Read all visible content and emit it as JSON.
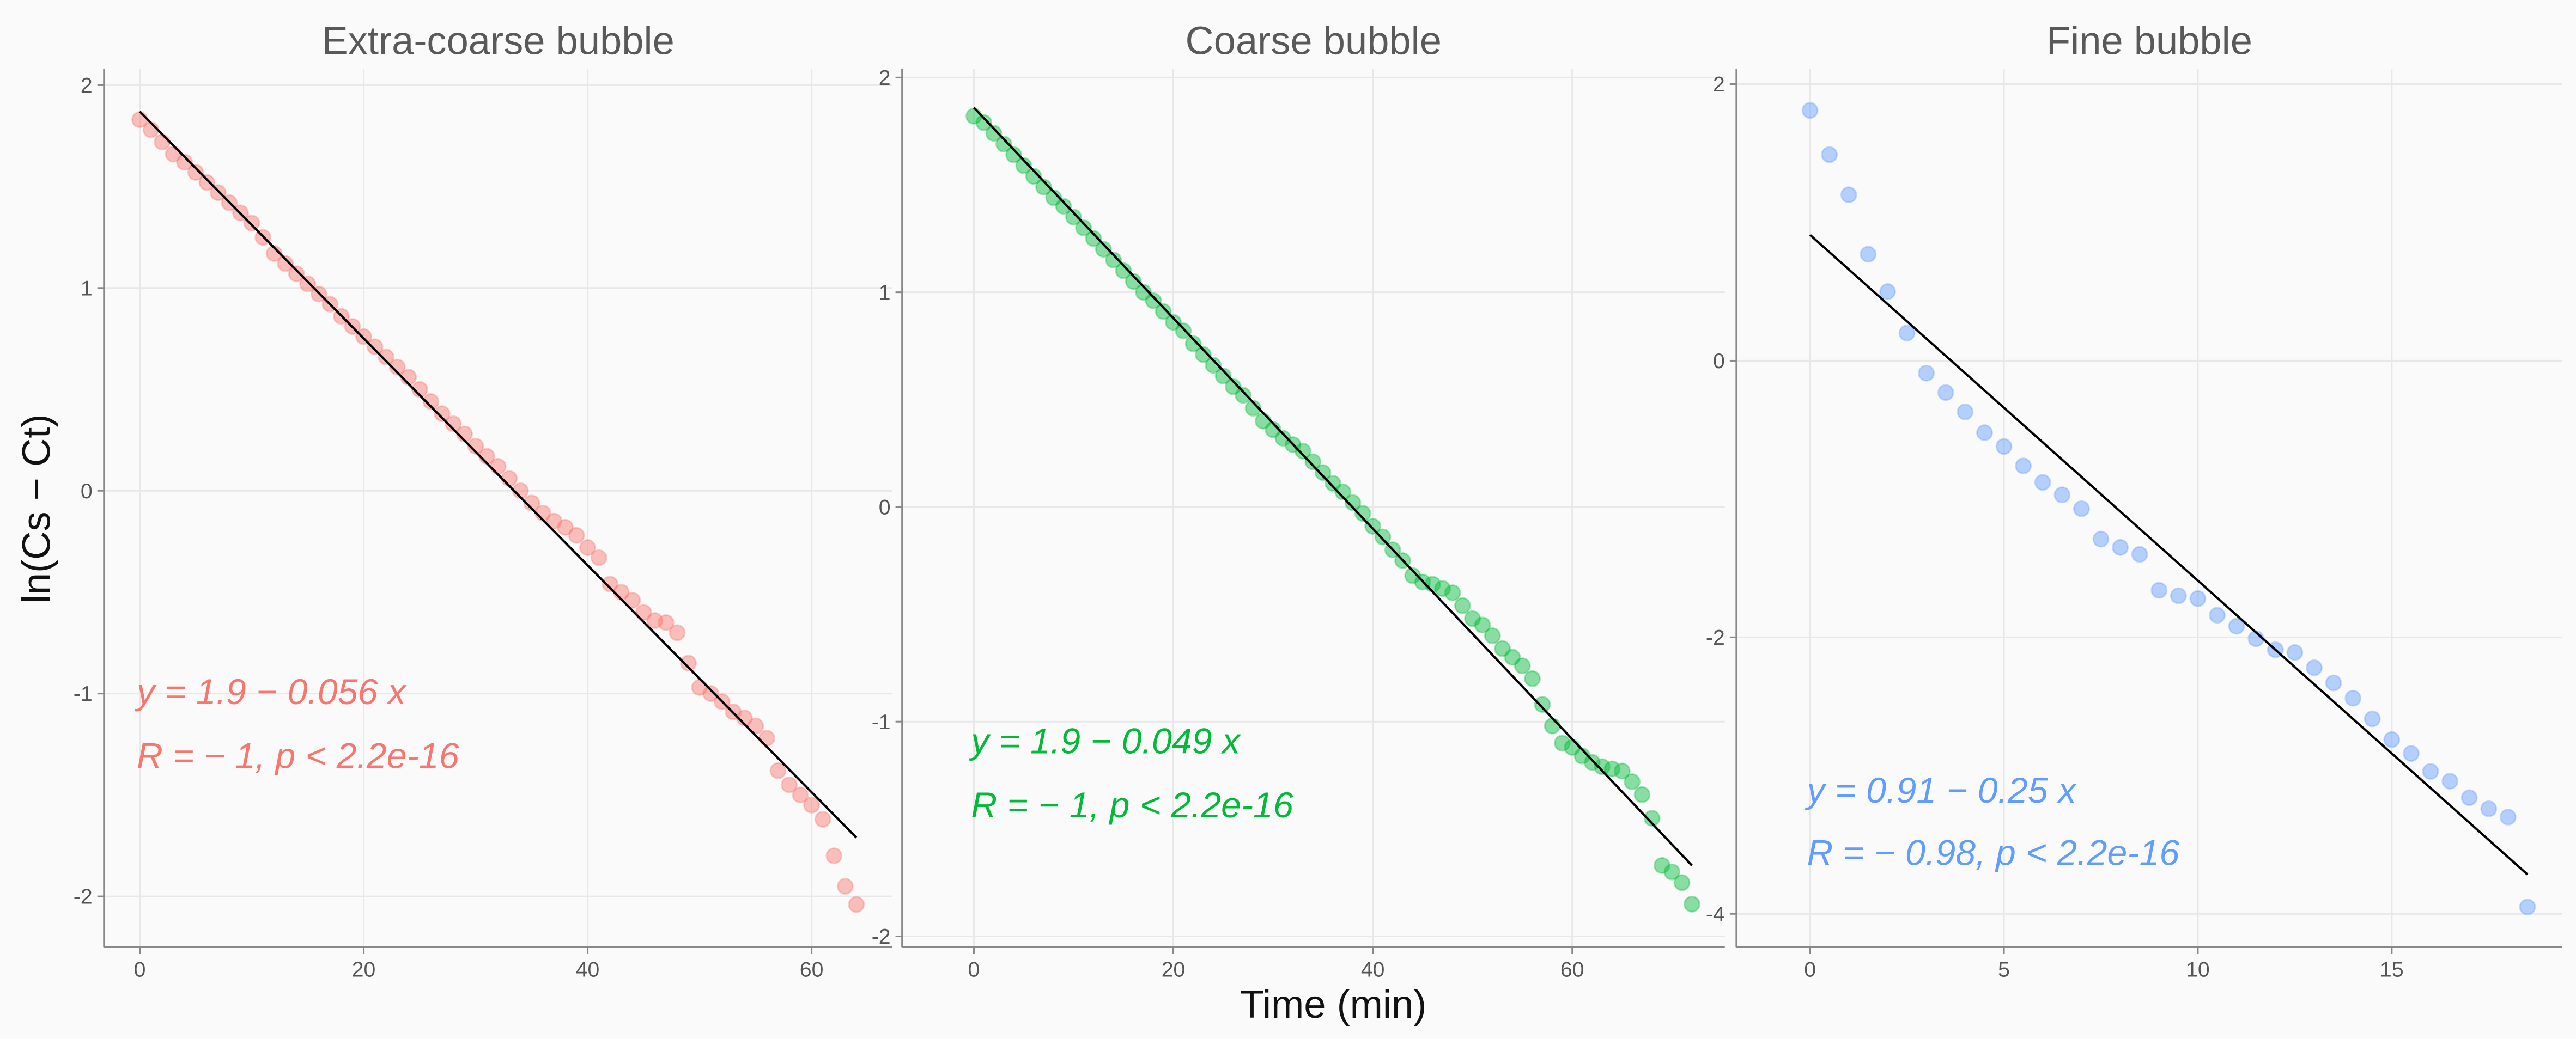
{
  "chart_data": [
    {
      "type": "scatter",
      "title": "Extra-coarse bubble",
      "y_label": "ln(Cs − Ct)",
      "color": "#F8766D",
      "x": [
        0,
        1,
        2,
        3,
        4,
        5,
        6,
        7,
        8,
        9,
        10,
        11,
        12,
        13,
        14,
        15,
        16,
        17,
        18,
        19,
        20,
        21,
        22,
        23,
        24,
        25,
        26,
        27,
        28,
        29,
        30,
        31,
        32,
        33,
        34,
        35,
        36,
        37,
        38,
        39,
        40,
        41,
        42,
        43,
        44,
        45,
        46,
        47,
        48,
        49,
        50,
        51,
        52,
        53,
        54,
        55,
        56,
        57,
        58,
        59,
        60,
        61,
        62,
        63,
        64
      ],
      "values": [
        1.83,
        1.78,
        1.72,
        1.66,
        1.62,
        1.57,
        1.52,
        1.47,
        1.42,
        1.37,
        1.32,
        1.25,
        1.17,
        1.12,
        1.07,
        1.02,
        0.97,
        0.92,
        0.86,
        0.81,
        0.76,
        0.71,
        0.66,
        0.61,
        0.56,
        0.5,
        0.44,
        0.38,
        0.33,
        0.28,
        0.22,
        0.17,
        0.12,
        0.06,
        0.0,
        -0.06,
        -0.11,
        -0.15,
        -0.18,
        -0.22,
        -0.28,
        -0.33,
        -0.46,
        -0.5,
        -0.54,
        -0.6,
        -0.64,
        -0.65,
        -0.7,
        -0.85,
        -0.97,
        -1.0,
        -1.04,
        -1.09,
        -1.12,
        -1.16,
        -1.22,
        -1.38,
        -1.45,
        -1.5,
        -1.55,
        -1.62,
        -1.8,
        -1.95,
        -2.04
      ],
      "fit": {
        "x": [
          0,
          64
        ],
        "y": [
          1.87,
          -1.71
        ]
      },
      "annotations": [
        "y = 1.9 − 0.056 x",
        "R = − 1, p < 2.2e-16"
      ],
      "xlim": [
        -3.2,
        67.2
      ],
      "ylim": [
        -2.25,
        2.08
      ],
      "xticks": [
        0,
        20,
        40,
        60
      ],
      "yticks": [
        -2,
        -1,
        0,
        1,
        2
      ],
      "grid": true
    },
    {
      "type": "scatter",
      "title": "Coarse bubble",
      "x_label": "Time (min)",
      "color": "#00BA38",
      "x": [
        0,
        1,
        2,
        3,
        4,
        5,
        6,
        7,
        8,
        9,
        10,
        11,
        12,
        13,
        14,
        15,
        16,
        17,
        18,
        19,
        20,
        21,
        22,
        23,
        24,
        25,
        26,
        27,
        28,
        29,
        30,
        31,
        32,
        33,
        34,
        35,
        36,
        37,
        38,
        39,
        40,
        41,
        42,
        43,
        44,
        45,
        46,
        47,
        48,
        49,
        50,
        51,
        52,
        53,
        54,
        55,
        56,
        57,
        58,
        59,
        60,
        61,
        62,
        63,
        64,
        65,
        66,
        67,
        68,
        69,
        70,
        71,
        72
      ],
      "values": [
        1.82,
        1.79,
        1.74,
        1.69,
        1.64,
        1.59,
        1.54,
        1.49,
        1.44,
        1.4,
        1.35,
        1.3,
        1.25,
        1.2,
        1.15,
        1.1,
        1.05,
        1.0,
        0.96,
        0.91,
        0.86,
        0.82,
        0.76,
        0.71,
        0.66,
        0.61,
        0.56,
        0.52,
        0.46,
        0.4,
        0.36,
        0.32,
        0.29,
        0.26,
        0.21,
        0.16,
        0.11,
        0.07,
        0.02,
        -0.03,
        -0.09,
        -0.14,
        -0.2,
        -0.25,
        -0.32,
        -0.35,
        -0.36,
        -0.38,
        -0.4,
        -0.46,
        -0.52,
        -0.55,
        -0.6,
        -0.66,
        -0.7,
        -0.74,
        -0.8,
        -0.92,
        -1.02,
        -1.1,
        -1.12,
        -1.16,
        -1.19,
        -1.21,
        -1.22,
        -1.23,
        -1.28,
        -1.34,
        -1.45,
        -1.67,
        -1.7,
        -1.75,
        -1.85
      ],
      "fit": {
        "x": [
          0,
          72
        ],
        "y": [
          1.86,
          -1.67
        ]
      },
      "annotations": [
        "y = 1.9 − 0.049 x",
        "R = − 1, p < 2.2e-16"
      ],
      "xlim": [
        -7.2,
        75.3
      ],
      "ylim": [
        -2.05,
        2.04
      ],
      "xticks": [
        0,
        20,
        40,
        60
      ],
      "yticks": [
        -2,
        -1,
        0,
        1,
        2
      ],
      "grid": true
    },
    {
      "type": "scatter",
      "title": "Fine bubble",
      "color": "#619CFF",
      "x": [
        0,
        0.5,
        1,
        1.5,
        2,
        2.5,
        3,
        3.5,
        4,
        4.5,
        5,
        5.5,
        6,
        6.5,
        7,
        7.5,
        8,
        8.5,
        9,
        9.5,
        10,
        10.5,
        11,
        11.5,
        12,
        12.5,
        13,
        13.5,
        14,
        14.5,
        15,
        15.5,
        16,
        16.5,
        17,
        17.5,
        18,
        18.5
      ],
      "values": [
        1.81,
        1.49,
        1.2,
        0.77,
        0.5,
        0.2,
        -0.09,
        -0.23,
        -0.37,
        -0.52,
        -0.62,
        -0.76,
        -0.88,
        -0.97,
        -1.07,
        -1.29,
        -1.35,
        -1.4,
        -1.66,
        -1.7,
        -1.72,
        -1.84,
        -1.92,
        -2.01,
        -2.09,
        -2.11,
        -2.22,
        -2.33,
        -2.44,
        -2.59,
        -2.74,
        -2.84,
        -2.97,
        -3.04,
        -3.16,
        -3.24,
        -3.3,
        -3.95
      ],
      "fit": {
        "x": [
          0,
          18.5
        ],
        "y": [
          0.91,
          -3.715
        ]
      },
      "annotations": [
        "y = 0.91 − 0.25 x",
        "R = − 0.98, p < 2.2e-16"
      ],
      "xlim": [
        -1.9,
        19.4
      ],
      "ylim": [
        -4.24,
        2.11
      ],
      "xticks": [
        0,
        5,
        10,
        15
      ],
      "yticks": [
        -4,
        -2,
        0,
        2
      ],
      "grid": true
    }
  ]
}
